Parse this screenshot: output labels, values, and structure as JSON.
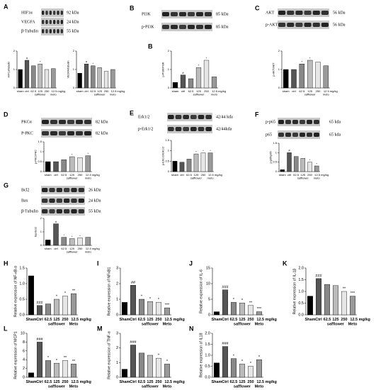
{
  "blots": [
    {
      "panel": "A",
      "bands": [
        {
          "name": "HIF1α",
          "kda": "92 kDa"
        },
        {
          "name": "VEGFA",
          "kda": "24 kDa"
        },
        {
          "name": "β-Tubulin",
          "kda": "55 kDa"
        }
      ]
    },
    {
      "panel": "B",
      "bands": [
        {
          "name": "PI3K",
          "kda": "85 kDa"
        },
        {
          "name": "p-PI3K",
          "kda": "85 kDa"
        }
      ]
    },
    {
      "panel": "C",
      "bands": [
        {
          "name": "AKT",
          "kda": "56 kDa"
        },
        {
          "name": "p-AKT",
          "kda": "56 kDa"
        }
      ]
    },
    {
      "panel": "D",
      "bands": [
        {
          "name": "PKCα",
          "kda": "82 kDa"
        },
        {
          "name": "P-PKC",
          "kda": "82 kDa"
        }
      ]
    },
    {
      "panel": "E",
      "bands": [
        {
          "name": "Erk1/2",
          "kda": "42/44 kda"
        },
        {
          "name": "p-Erk1/2",
          "kda": "42/44kda"
        }
      ]
    },
    {
      "panel": "F",
      "bands": [
        {
          "name": "p-p65",
          "kda": "65 kda"
        },
        {
          "name": "p65",
          "kda": "65 kda"
        }
      ]
    },
    {
      "panel": "G",
      "bands": [
        {
          "name": "Bcl2",
          "kda": "26 kDa"
        },
        {
          "name": "Bax",
          "kda": "24 kDa"
        },
        {
          "name": "β-Tubulin",
          "kda": "55 kDa"
        }
      ]
    }
  ],
  "chart_data": [
    {
      "type": "bar",
      "ylabel": "HIF1α/tubulin",
      "categories": [
        "sham",
        "ctrl",
        "62.5",
        "125",
        "250",
        "12.5 mg/kg"
      ],
      "group_labels": [
        "safflower",
        "meto"
      ],
      "values": [
        1.0,
        1.5,
        1.2,
        1.3,
        1.0,
        1.05
      ],
      "annotations": [
        null,
        "#",
        null,
        "*",
        null,
        null
      ],
      "colors": [
        "#000000",
        "#555555",
        "#888888",
        "#bbbbbb",
        "#e6e6e6",
        "#999999"
      ],
      "ylim": [
        0,
        2
      ],
      "yticks": [
        0,
        1,
        2
      ]
    },
    {
      "type": "bar",
      "ylabel": "VEGFA/tubulin",
      "categories": [
        "sham",
        "ctrl",
        "62.5",
        "125",
        "250",
        "12.5 mg/kg"
      ],
      "group_labels": [
        "safflower",
        "meto"
      ],
      "values": [
        0.8,
        1.3,
        1.2,
        1.1,
        0.9,
        1.0
      ],
      "annotations": [
        null,
        "#",
        "*",
        null,
        null,
        null
      ],
      "colors": [
        "#000000",
        "#555555",
        "#888888",
        "#bbbbbb",
        "#e6e6e6",
        "#999999"
      ],
      "ylim": [
        0,
        2
      ],
      "yticks": [
        0,
        1,
        2
      ]
    },
    {
      "type": "bar",
      "panel": "B",
      "ylabel": "p-PI3K/PI3K",
      "categories": [
        "sham",
        "ctrl",
        "62.5",
        "125",
        "250",
        "12.5 mg/kg"
      ],
      "group_labels": [
        "safflower",
        "meto"
      ],
      "values": [
        0.3,
        0.7,
        0.5,
        1.1,
        1.5,
        0.6
      ],
      "annotations": [
        null,
        "#",
        null,
        "*",
        "*",
        null
      ],
      "colors": [
        "#000000",
        "#555555",
        "#888888",
        "#bbbbbb",
        "#e6e6e6",
        "#999999"
      ],
      "ylim": [
        0,
        2
      ],
      "yticks": [
        0,
        1,
        2
      ]
    },
    {
      "type": "bar",
      "ylabel": "p-AKT/AKT",
      "categories": [
        "sham",
        "ctrl",
        "62.5",
        "125",
        "250",
        "12.5 mg/kg"
      ],
      "group_labels": [
        "safflower",
        "meto"
      ],
      "values": [
        1.0,
        1.0,
        1.3,
        1.5,
        1.4,
        1.2
      ],
      "annotations": [
        null,
        null,
        "*",
        "*",
        null,
        null
      ],
      "colors": [
        "#000000",
        "#555555",
        "#888888",
        "#bbbbbb",
        "#e6e6e6",
        "#999999"
      ],
      "ylim": [
        0,
        2
      ],
      "yticks": [
        0,
        1,
        2
      ]
    },
    {
      "type": "bar",
      "ylabel": "p-PKC/PKC",
      "categories": [
        "sham",
        "ctrl",
        "62.5",
        "125",
        "250",
        "12.5 mg/kg"
      ],
      "group_labels": [
        "safflower",
        "meto"
      ],
      "values": [
        0.5,
        0.5,
        0.6,
        0.75,
        0.7,
        0.8
      ],
      "annotations": [
        null,
        null,
        null,
        "*",
        null,
        "*"
      ],
      "colors": [
        "#000000",
        "#555555",
        "#888888",
        "#bbbbbb",
        "#e6e6e6",
        "#999999"
      ],
      "ylim": [
        0,
        1.5
      ],
      "yticks": [
        0,
        0.5,
        1,
        1.5
      ]
    },
    {
      "type": "bar",
      "ylabel": "p-Erk1/2/Erk1/2",
      "categories": [
        "sham",
        "ctrl",
        "62.5",
        "125",
        "250",
        "12.5 mg/kg"
      ],
      "group_labels": [
        "safflower",
        "meto"
      ],
      "values": [
        0.5,
        0.45,
        0.6,
        0.85,
        0.9,
        0.9
      ],
      "annotations": [
        null,
        null,
        null,
        "*",
        "*",
        "*"
      ],
      "colors": [
        "#000000",
        "#555555",
        "#888888",
        "#bbbbbb",
        "#e6e6e6",
        "#999999"
      ],
      "ylim": [
        0,
        1.5
      ],
      "yticks": [
        0,
        0.5,
        1,
        1.5
      ]
    },
    {
      "type": "bar",
      "ylabel": "p-p65/p65",
      "categories": [
        "sham",
        "ctrl",
        "62.5",
        "125",
        "250",
        "12.5 mg/kg"
      ],
      "group_labels": [
        "safflower",
        "meto"
      ],
      "values": [
        0.1,
        1.0,
        0.8,
        0.7,
        0.5,
        0.3
      ],
      "annotations": [
        null,
        "#",
        null,
        null,
        "*",
        "*"
      ],
      "colors": [
        "#000000",
        "#555555",
        "#888888",
        "#bbbbbb",
        "#e6e6e6",
        "#999999"
      ],
      "ylim": [
        0,
        1.5
      ],
      "yticks": [
        0,
        0.5,
        1,
        1.5
      ]
    },
    {
      "type": "bar",
      "ylabel": "bax/bcl2",
      "categories": [
        "sham",
        "ctrl",
        "62.5",
        "125",
        "250",
        "12.5 mg/kg"
      ],
      "group_labels": [
        "safflower",
        "meto"
      ],
      "values": [
        0.4,
        1.6,
        0.6,
        0.5,
        0.55,
        0.6
      ],
      "annotations": [
        null,
        "#",
        "*",
        "*",
        "*",
        null
      ],
      "colors": [
        "#000000",
        "#555555",
        "#888888",
        "#bbbbbb",
        "#e6e6e6",
        "#999999"
      ],
      "ylim": [
        0,
        2
      ],
      "yticks": [
        0,
        1,
        2
      ]
    },
    {
      "type": "bar",
      "panel": "H",
      "ylabel": "Relative expression of NF-κB-α",
      "categories": [
        "Sham",
        "Ctrl",
        "62.5",
        "125",
        "250",
        "12.5 mg/kg"
      ],
      "group_labels": [
        "safflower",
        "Meto"
      ],
      "values": [
        1.25,
        0.3,
        0.35,
        0.5,
        0.6,
        0.68
      ],
      "annotations": [
        null,
        "###",
        null,
        "*",
        "*",
        "**"
      ],
      "colors": [
        "#000000",
        "#555555",
        "#888888",
        "#bbbbbb",
        "#e6e6e6",
        "#999999"
      ],
      "ylim": [
        0,
        1.5
      ],
      "yticks": [
        {
          "value": 0,
          "label": "0.0"
        },
        {
          "value": 0.5,
          "label": "0.5"
        },
        {
          "value": 1,
          "label": "1.0"
        },
        {
          "value": 1.5,
          "label": "1.5"
        }
      ]
    },
    {
      "type": "bar",
      "panel": "I",
      "ylabel": "Relative expression of NFκB1",
      "categories": [
        "Sham",
        "Ctrl",
        "62.5",
        "125",
        "250",
        "12.5 mg/kg"
      ],
      "group_labels": [
        "safflower",
        "Meto"
      ],
      "values": [
        0.8,
        1.9,
        1.0,
        0.85,
        0.8,
        0.45
      ],
      "annotations": [
        null,
        "##",
        "*",
        "*",
        "*",
        "***"
      ],
      "colors": [
        "#000000",
        "#555555",
        "#888888",
        "#bbbbbb",
        "#e6e6e6",
        "#999999"
      ],
      "ylim": [
        0,
        3
      ],
      "yticks": [
        0,
        1,
        2,
        3
      ]
    },
    {
      "type": "bar",
      "panel": "J",
      "ylabel": "Relative expression of IL-6",
      "categories": [
        "Sham",
        "Ctrl",
        "62.5",
        "125",
        "250",
        "12.5 mg/kg"
      ],
      "group_labels": [
        "safflower",
        "Meto"
      ],
      "values": [
        1,
        8,
        4,
        3.8,
        3,
        1
      ],
      "annotations": [
        null,
        "###",
        "*",
        "*",
        "**",
        "***"
      ],
      "colors": [
        "#000000",
        "#555555",
        "#888888",
        "#bbbbbb",
        "#e6e6e6",
        "#999999"
      ],
      "ylim": [
        0,
        15
      ],
      "yticks": [
        0,
        5,
        10,
        15
      ]
    },
    {
      "type": "bar",
      "panel": "K",
      "ylabel": "Relative expression of IL-1β",
      "categories": [
        "Sham",
        "Ctrl",
        "62.5",
        "125",
        "250",
        "12.5 mg/kg"
      ],
      "group_labels": [
        "safflower",
        "Meto"
      ],
      "values": [
        0.8,
        1.55,
        1.3,
        1.25,
        1.0,
        0.8
      ],
      "annotations": [
        null,
        "###",
        null,
        null,
        "**",
        "***"
      ],
      "colors": [
        "#000000",
        "#555555",
        "#888888",
        "#bbbbbb",
        "#e6e6e6",
        "#999999"
      ],
      "ylim": [
        0,
        2
      ],
      "yticks": [
        {
          "value": 0,
          "label": "0.0"
        },
        {
          "value": 0.5,
          "label": "0.5"
        },
        {
          "value": 1,
          "label": "1.0"
        },
        {
          "value": 1.5,
          "label": "1.5"
        },
        {
          "value": 2,
          "label": "2.0"
        }
      ]
    },
    {
      "type": "bar",
      "panel": "L",
      "ylabel": "Relative expression of MCP1",
      "categories": [
        "Sham",
        "Ctrl",
        "62.5",
        "125",
        "250",
        "12.5 mg/kg"
      ],
      "group_labels": [
        "safflower",
        "Meto"
      ],
      "values": [
        1,
        8,
        3.8,
        3.2,
        3.8,
        3.0
      ],
      "annotations": [
        null,
        "###",
        "*",
        "*",
        "**",
        "**"
      ],
      "colors": [
        "#000000",
        "#555555",
        "#888888",
        "#bbbbbb",
        "#e6e6e6",
        "#999999"
      ],
      "ylim": [
        0,
        10
      ],
      "yticks": [
        0,
        2,
        4,
        6,
        8,
        10
      ]
    },
    {
      "type": "bar",
      "panel": "M",
      "ylabel": "Relative expression of TNF-α",
      "categories": [
        "Sham",
        "Ctrl",
        "62.5",
        "125",
        "250",
        "12.5 mg/kg"
      ],
      "group_labels": [
        "safflower",
        "Meto"
      ],
      "values": [
        0.55,
        2.2,
        1.65,
        1.5,
        1.3,
        0.9
      ],
      "annotations": [
        null,
        "###",
        null,
        null,
        "*",
        "*"
      ],
      "colors": [
        "#000000",
        "#555555",
        "#888888",
        "#bbbbbb",
        "#e6e6e6",
        "#999999"
      ],
      "ylim": [
        0,
        3
      ],
      "yticks": [
        0,
        1,
        2,
        3
      ]
    },
    {
      "type": "bar",
      "panel": "N",
      "ylabel": "Relative expression of IL18",
      "categories": [
        "Sham",
        "Ctrl",
        "62.5",
        "125",
        "250",
        "12.5 mg/kg"
      ],
      "group_labels": [
        "safflower",
        "Meto"
      ],
      "values": [
        0.65,
        1.4,
        0.85,
        0.6,
        0.5,
        0.8
      ],
      "annotations": [
        null,
        "###",
        "*",
        "*",
        "*",
        "*"
      ],
      "colors": [
        "#000000",
        "#555555",
        "#888888",
        "#bbbbbb",
        "#e6e6e6",
        "#999999"
      ],
      "ylim": [
        0,
        2
      ],
      "yticks": [
        {
          "value": 0,
          "label": "0.0"
        },
        {
          "value": 0.5,
          "label": "0.5"
        },
        {
          "value": 1,
          "label": "1.0"
        },
        {
          "value": 1.5,
          "label": "1.5"
        },
        {
          "value": 2,
          "label": "2.0"
        }
      ]
    }
  ]
}
